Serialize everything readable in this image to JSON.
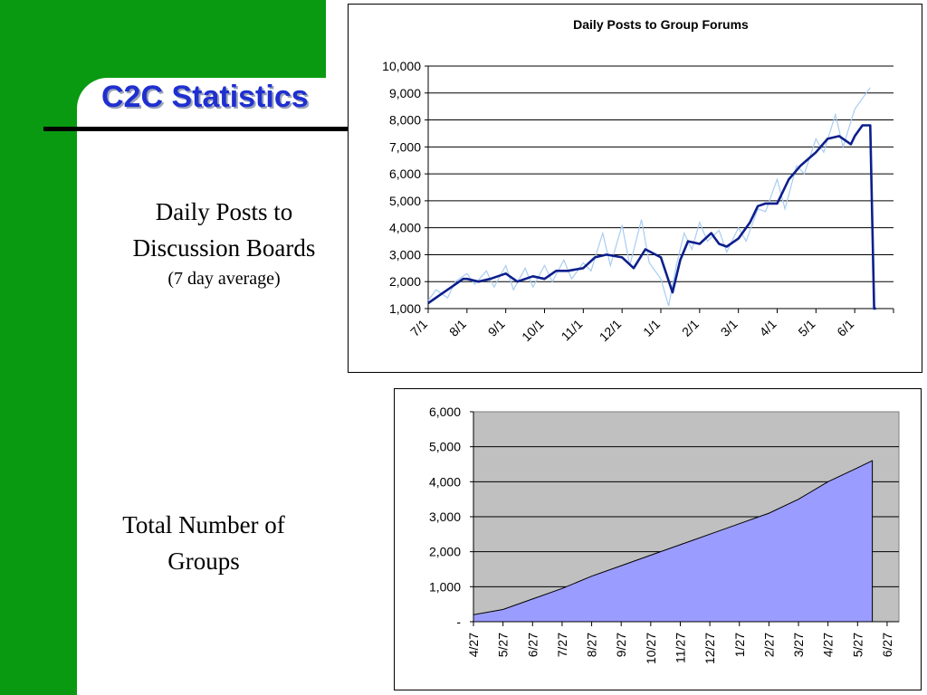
{
  "slide": {
    "title": "C2C Statistics",
    "caption_posts_line1": "Daily Posts to",
    "caption_posts_line2": "Discussion Boards",
    "caption_posts_sub": "(7 day average)",
    "caption_groups_line1": "Total Number of",
    "caption_groups_line2": "Groups"
  },
  "colors": {
    "green": "#0a9a12",
    "title_blue": "#1f2fd0",
    "avg_line": "#0d1f8c",
    "daily_line": "#a9cdf0",
    "area_fill": "#9b9cff",
    "plot_bg": "#c0c0c0"
  },
  "chart_data": [
    {
      "type": "line",
      "title": "Daily Posts to Group Forums",
      "xlabel": "",
      "ylabel": "",
      "ylim": [
        1000,
        10000
      ],
      "yticks": [
        1000,
        2000,
        3000,
        4000,
        5000,
        6000,
        7000,
        8000,
        9000,
        10000
      ],
      "ytick_labels": [
        "1,000",
        "2,000",
        "3,000",
        "4,000",
        "5,000",
        "6,000",
        "7,000",
        "8,000",
        "9,000",
        "10,000"
      ],
      "x_ticks": [
        "7/1",
        "8/1",
        "9/1",
        "10/1",
        "11/1",
        "12/1",
        "1/1",
        "2/1",
        "3/1",
        "4/1",
        "5/1",
        "6/1"
      ],
      "grid": true,
      "legend": "none",
      "series": [
        {
          "role": "average",
          "x": [
            0,
            0.3,
            0.6,
            0.9,
            1.0,
            1.3,
            1.6,
            2.0,
            2.3,
            2.7,
            3.0,
            3.3,
            3.6,
            4.0,
            4.3,
            4.6,
            5.0,
            5.3,
            5.6,
            6.0,
            6.3,
            6.5,
            6.7,
            7.0,
            7.3,
            7.5,
            7.7,
            8.0,
            8.3,
            8.5,
            8.7,
            9.0,
            9.3,
            9.6,
            10.0,
            10.3,
            10.6,
            10.9,
            11.0,
            11.2,
            11.4,
            11.5,
            11.55
          ],
          "values": [
            1200,
            1500,
            1800,
            2100,
            2100,
            2000,
            2100,
            2300,
            2000,
            2200,
            2100,
            2400,
            2400,
            2500,
            2900,
            3000,
            2900,
            2500,
            3200,
            2900,
            1600,
            2800,
            3500,
            3400,
            3800,
            3400,
            3300,
            3600,
            4200,
            4800,
            4900,
            4900,
            5800,
            6300,
            6800,
            7300,
            7400,
            7100,
            7400,
            7800,
            7800,
            1000,
            1000
          ]
        },
        {
          "role": "daily",
          "x": [
            0,
            0.2,
            0.5,
            0.7,
            1.0,
            1.2,
            1.5,
            1.7,
            2.0,
            2.2,
            2.5,
            2.7,
            3.0,
            3.2,
            3.5,
            3.7,
            4.0,
            4.2,
            4.5,
            4.7,
            5.0,
            5.2,
            5.5,
            5.7,
            6.0,
            6.2,
            6.4,
            6.6,
            6.8,
            7.0,
            7.2,
            7.5,
            7.7,
            8.0,
            8.2,
            8.5,
            8.7,
            9.0,
            9.2,
            9.5,
            9.7,
            10.0,
            10.2,
            10.5,
            10.7,
            11.0,
            11.2,
            11.4
          ],
          "values": [
            1300,
            1700,
            1400,
            2000,
            2300,
            1900,
            2400,
            1800,
            2600,
            1700,
            2500,
            1800,
            2600,
            2000,
            2800,
            2100,
            2700,
            2400,
            3800,
            2600,
            4100,
            2600,
            4300,
            2700,
            2100,
            1100,
            2600,
            3800,
            3200,
            4200,
            3500,
            3900,
            3100,
            4000,
            3500,
            4700,
            4600,
            5800,
            4700,
            6300,
            6000,
            7300,
            6800,
            8200,
            7000,
            8400,
            8800,
            9200
          ]
        }
      ]
    },
    {
      "type": "area",
      "title": "",
      "xlabel": "",
      "ylabel": "",
      "ylim": [
        0,
        6000
      ],
      "yticks": [
        0,
        1000,
        2000,
        3000,
        4000,
        5000,
        6000
      ],
      "ytick_labels": [
        "-",
        "1,000",
        "2,000",
        "3,000",
        "4,000",
        "5,000",
        "6,000"
      ],
      "x_ticks": [
        "4/27",
        "5/27",
        "6/27",
        "7/27",
        "8/27",
        "9/27",
        "10/27",
        "11/27",
        "12/27",
        "1/27",
        "2/27",
        "3/27",
        "4/27",
        "5/27",
        "6/27"
      ],
      "grid": true,
      "legend": "none",
      "series": [
        {
          "x": [
            0,
            1,
            2,
            3,
            4,
            5,
            6,
            7,
            8,
            9,
            10,
            11,
            12,
            13,
            13.5
          ],
          "values": [
            200,
            350,
            650,
            950,
            1300,
            1600,
            1900,
            2200,
            2500,
            2800,
            3100,
            3500,
            4000,
            4400,
            4600
          ]
        }
      ]
    }
  ]
}
